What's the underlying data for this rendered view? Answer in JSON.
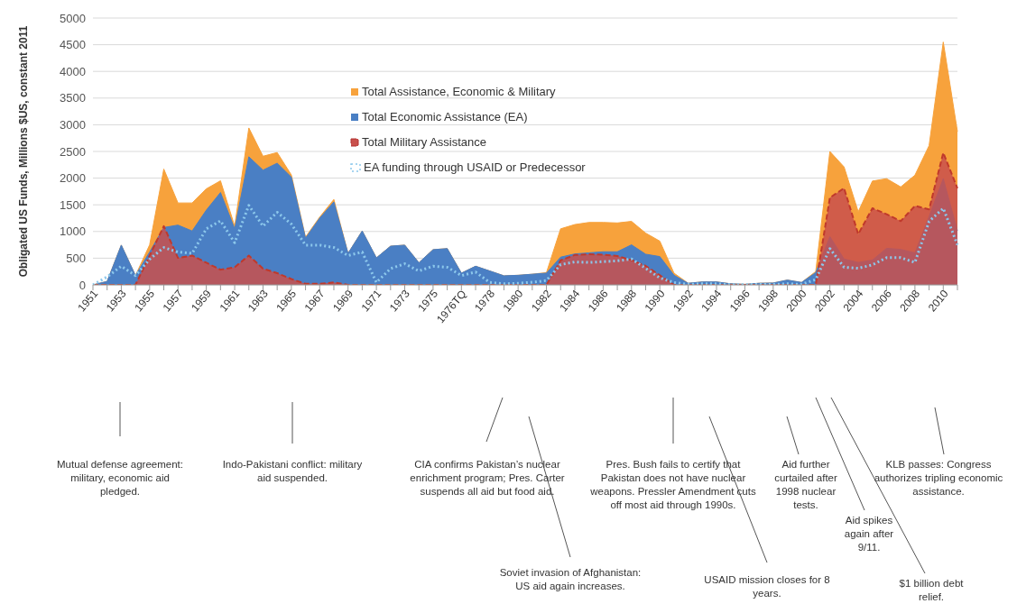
{
  "chart_data": {
    "type": "area",
    "ylabel": "Obligated US Funds, Millions $US, constant 2011",
    "categories": [
      "1951",
      null,
      "1953",
      null,
      "1955",
      null,
      "1957",
      null,
      "1959",
      null,
      "1961",
      null,
      "1963",
      null,
      "1965",
      null,
      "1967",
      null,
      "1969",
      null,
      "1971",
      null,
      "1973",
      null,
      "1975",
      null,
      "1976TQ",
      null,
      "1978",
      null,
      "1980",
      null,
      "1982",
      null,
      "1984",
      null,
      "1986",
      null,
      "1988",
      null,
      "1990",
      null,
      "1992",
      null,
      "1994",
      null,
      "1996",
      null,
      "1998",
      null,
      "2000",
      null,
      "2002",
      null,
      "2004",
      null,
      "2006",
      null,
      "2008",
      null,
      "2010",
      null
    ],
    "series": [
      {
        "name": "Total Assistance, Economic & Military",
        "color": "#f7a23c",
        "values": [
          0,
          65,
          745,
          175,
          750,
          2170,
          1535,
          1535,
          1800,
          1950,
          1100,
          2940,
          2410,
          2480,
          2060,
          895,
          1270,
          1600,
          590,
          1010,
          505,
          725,
          745,
          415,
          660,
          680,
          220,
          350,
          260,
          170,
          180,
          200,
          230,
          1050,
          1130,
          1170,
          1170,
          1160,
          1190,
          970,
          820,
          220,
          30,
          55,
          55,
          20,
          10,
          30,
          35,
          90,
          45,
          250,
          2500,
          2210,
          1370,
          1945,
          1990,
          1835,
          2055,
          2610,
          4550,
          2870
        ]
      },
      {
        "name": "Total Economic Assistance (EA)",
        "color": "#4a7fc4",
        "values": [
          0,
          65,
          745,
          175,
          615,
          1075,
          1120,
          1010,
          1400,
          1730,
          1050,
          2400,
          2150,
          2280,
          2020,
          875,
          1250,
          1555,
          590,
          1010,
          505,
          725,
          745,
          415,
          660,
          680,
          220,
          350,
          260,
          170,
          180,
          200,
          220,
          520,
          580,
          600,
          620,
          620,
          750,
          575,
          530,
          180,
          30,
          55,
          55,
          20,
          10,
          30,
          35,
          90,
          45,
          230,
          905,
          485,
          420,
          465,
          685,
          665,
          600,
          1280,
          1990,
          1015
        ]
      },
      {
        "name": "Total Military Assistance",
        "color": "#c9504c",
        "line_style": "dashed",
        "values": [
          0,
          0,
          0,
          0,
          550,
          1100,
          505,
          550,
          415,
          285,
          330,
          550,
          305,
          220,
          110,
          20,
          20,
          45,
          0,
          0,
          0,
          0,
          0,
          0,
          0,
          0,
          0,
          0,
          0,
          0,
          0,
          0,
          0,
          460,
          560,
          575,
          565,
          540,
          465,
          355,
          180,
          0,
          0,
          0,
          0,
          0,
          0,
          0,
          0,
          0,
          0,
          0,
          1635,
          1810,
          950,
          1435,
          1325,
          1195,
          1480,
          1415,
          2475,
          1810
        ]
      },
      {
        "name": "EA funding through USAID or Predecessor",
        "type": "line",
        "color": "#8cc8ec",
        "line_style": "dotted",
        "values": [
          0,
          150,
          350,
          175,
          480,
          700,
          615,
          590,
          1050,
          1200,
          790,
          1490,
          1100,
          1360,
          1140,
          745,
          745,
          700,
          550,
          615,
          45,
          305,
          395,
          260,
          350,
          330,
          175,
          240,
          45,
          20,
          30,
          50,
          80,
          380,
          430,
          420,
          435,
          450,
          485,
          310,
          130,
          45,
          10,
          20,
          20,
          5,
          5,
          10,
          10,
          20,
          10,
          100,
          680,
          330,
          310,
          375,
          510,
          510,
          420,
          1190,
          1435,
          750
        ]
      }
    ],
    "ylim": [
      0,
      5000
    ],
    "yticks": [
      0,
      500,
      1000,
      1500,
      2000,
      2500,
      3000,
      3500,
      4000,
      4500,
      5000
    ],
    "grid": "y",
    "legend": "top",
    "annotations": [
      "Mutual defense agreement: military, economic aid pledged.",
      "Indo-Pakistani conflict: military aid suspended.",
      "CIA confirms Pakistan’s nuclear enrichment program; Pres. Carter suspends all aid but food aid.",
      "Soviet invasion of Afghanistan: US aid again increases.",
      "Pres. Bush fails to certify that Pakistan does not have nuclear weapons. Pressler Amendment cuts off most aid through 1990s.",
      "USAID mission closes for 8 years.",
      "Aid further curtailed after 1998 nuclear tests.",
      "Aid spikes again after 9/11.",
      "$1 billion debt relief.",
      "KLB passes: Congress authorizes tripling economic assistance."
    ]
  }
}
